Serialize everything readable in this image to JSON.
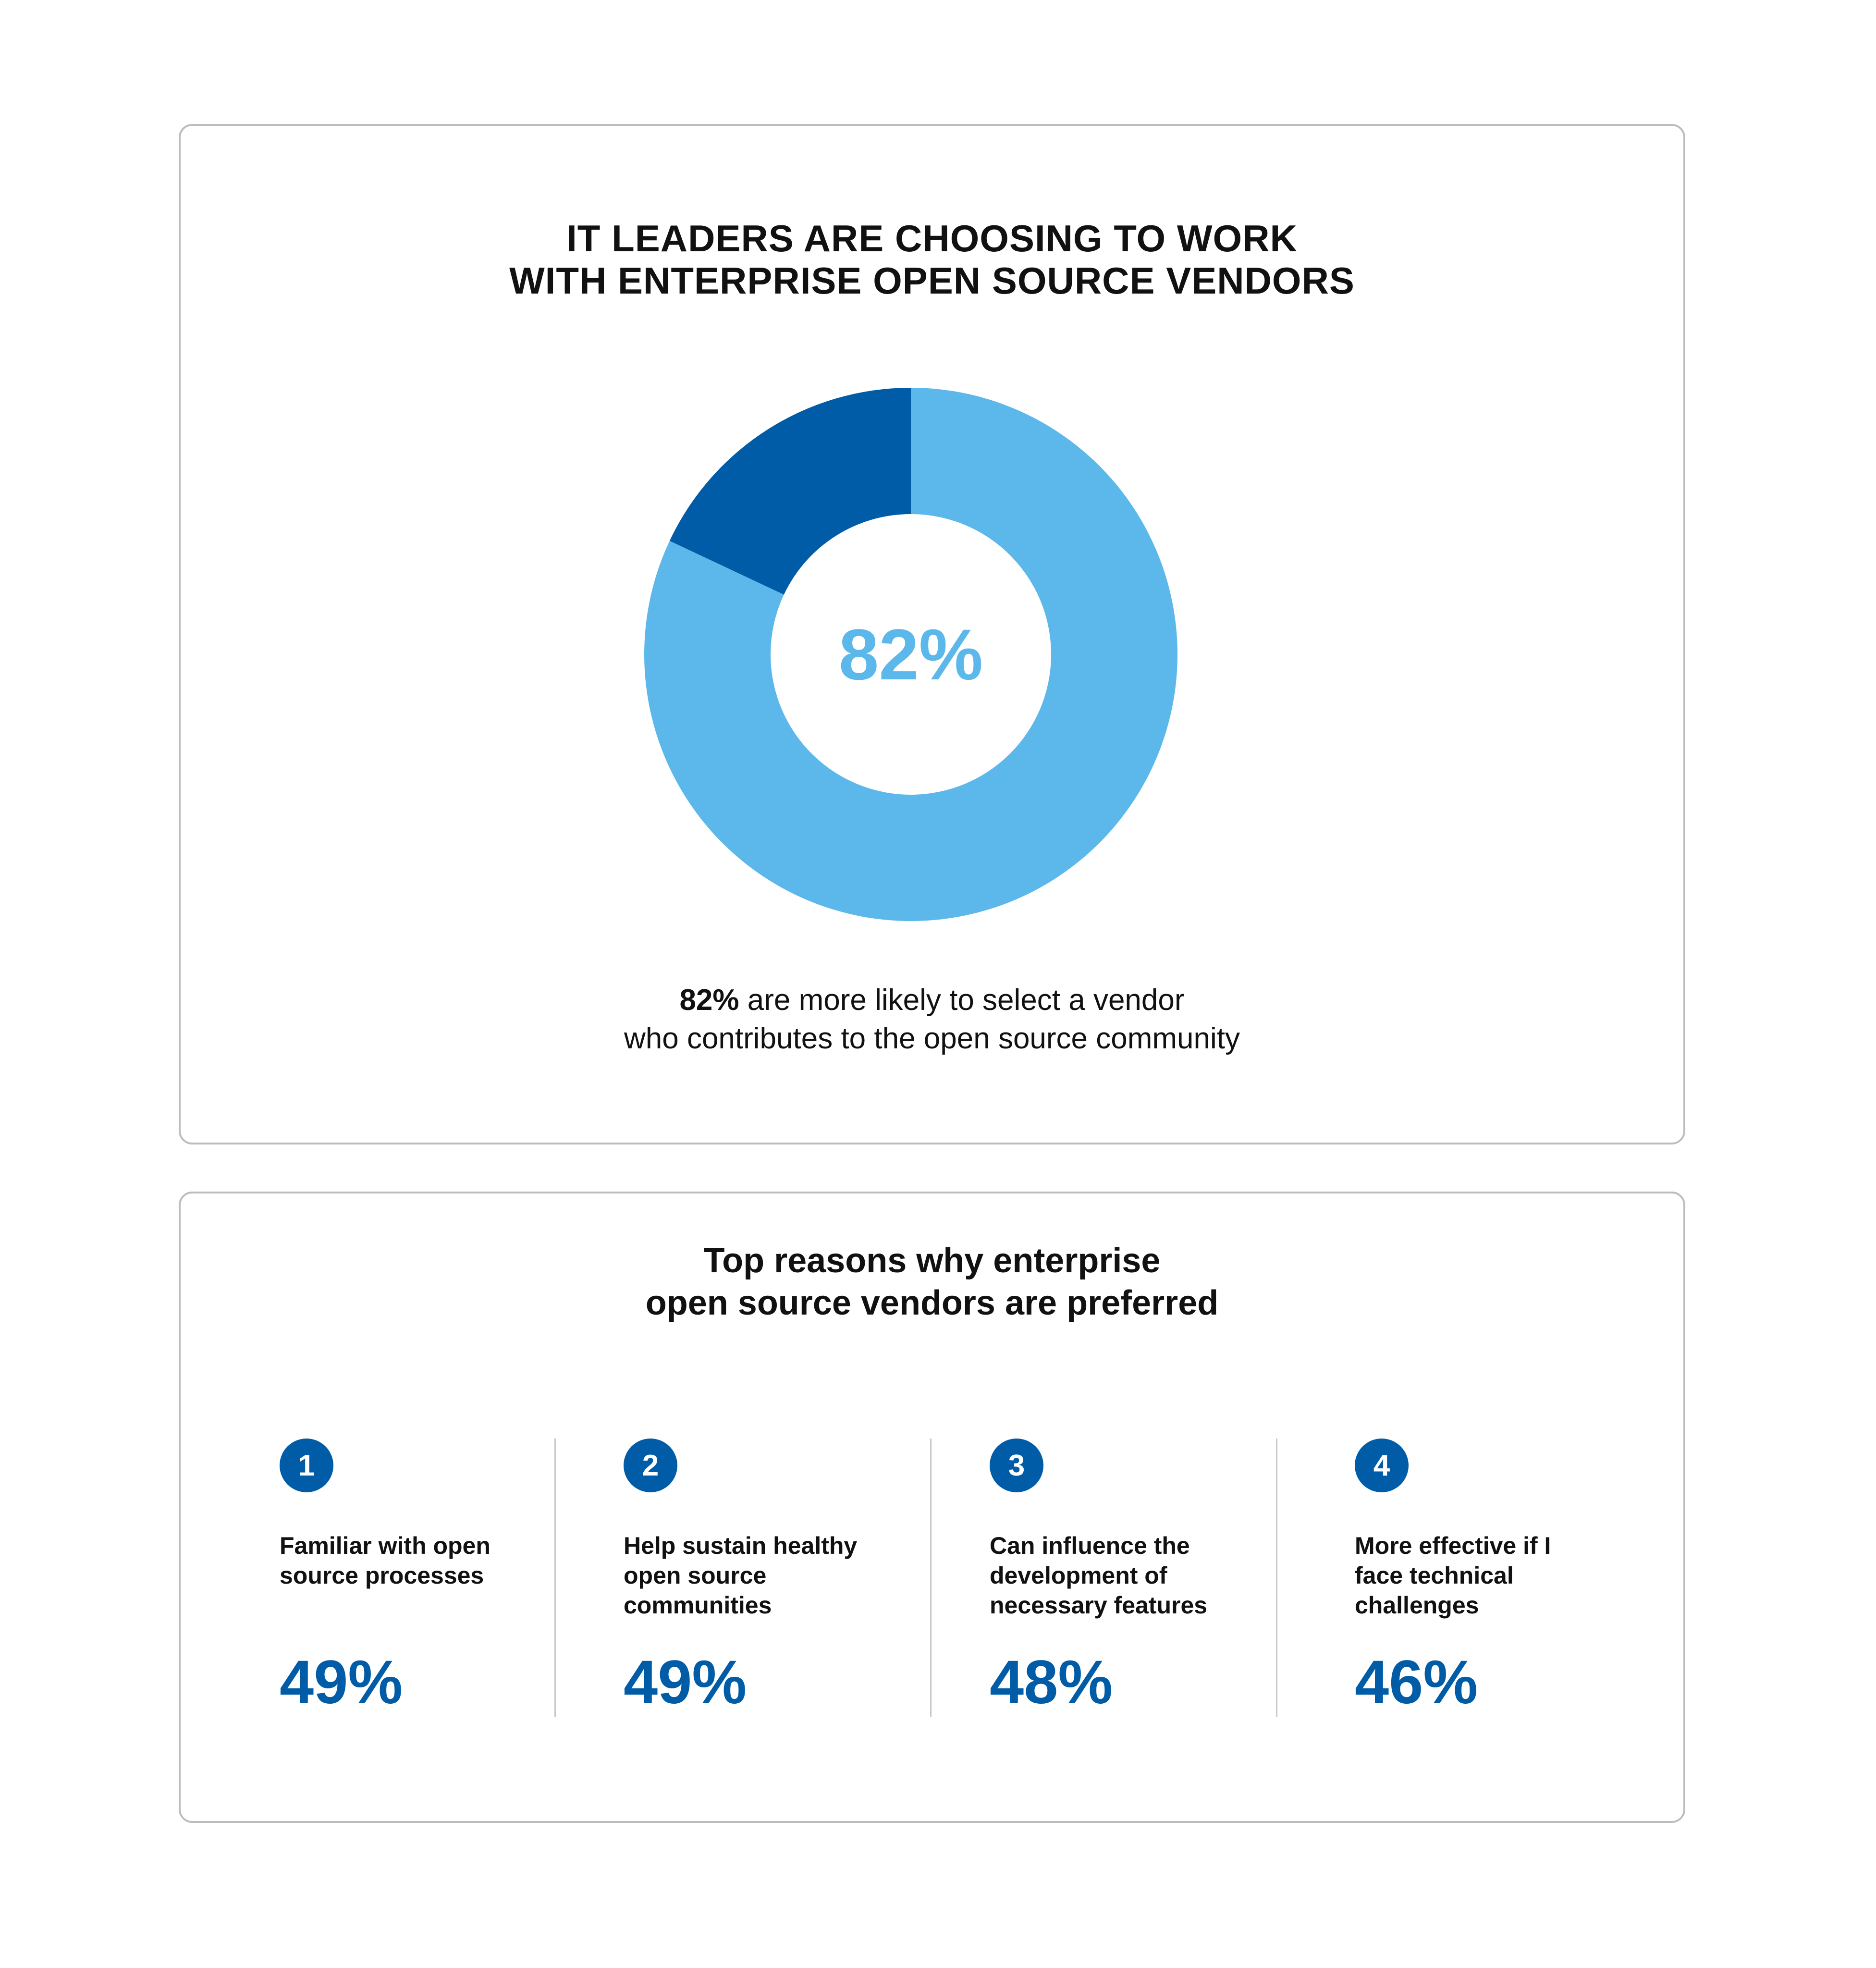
{
  "colors": {
    "light_blue": "#5cb8ea",
    "dark_blue": "#005ca6",
    "text": "#111111",
    "border": "#bdbdbd"
  },
  "top_card": {
    "title_line1": "IT LEADERS ARE CHOOSING TO WORK",
    "title_line2": "WITH ENTERPRISE OPEN SOURCE VENDORS",
    "center_label": "82%",
    "caption_bold": "82%",
    "caption_rest_line1": " are more likely to select a vendor",
    "caption_line2": "who contributes to the open source community"
  },
  "bottom_card": {
    "title_line1": "Top reasons why enterprise",
    "title_line2": "open source vendors are preferred",
    "reasons": [
      {
        "number": "1",
        "label": "Familiar with open\nsource processes",
        "value": "49%"
      },
      {
        "number": "2",
        "label": "Help sustain healthy\nopen source\ncommunities",
        "value": "49%"
      },
      {
        "number": "3",
        "label": "Can influence the\ndevelopment of\nnecessary features",
        "value": "48%"
      },
      {
        "number": "4",
        "label": "More effective if I\nface technical\nchallenges",
        "value": "46%"
      }
    ]
  },
  "chart_data": [
    {
      "type": "pie",
      "categories": [
        "",
        ""
      ],
      "values": [
        82,
        18
      ],
      "colors": [
        "#5cb8ea",
        "#005ca6"
      ],
      "center_label": "82%",
      "title": "IT LEADERS ARE CHOOSING TO WORK WITH ENTERPRISE OPEN SOURCE VENDORS"
    },
    {
      "type": "table",
      "title": "Top reasons why enterprise open source vendors are preferred",
      "categories": [
        "Familiar with open source processes",
        "Help sustain healthy open source communities",
        "Can influence the development of necessary features",
        "More effective if I face technical challenges"
      ],
      "values": [
        49,
        49,
        48,
        46
      ],
      "unit": "%"
    }
  ]
}
